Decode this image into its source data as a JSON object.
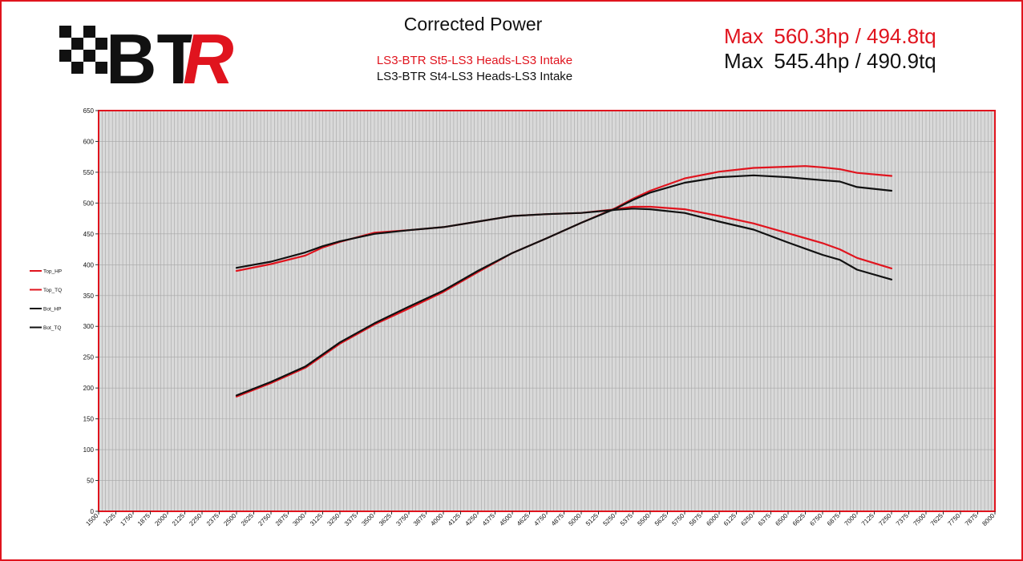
{
  "header": {
    "title": "Corrected Power",
    "subtitle_top": "LS3-BTR St5-LS3 Heads-LS3 Intake",
    "subtitle_bottom": "LS3-BTR St4-LS3 Heads-LS3 Intake",
    "max_top": {
      "label": "Max",
      "value": "560.3hp / 494.8tq"
    },
    "max_bottom": {
      "label": "Max",
      "value": "545.4hp / 490.9tq"
    }
  },
  "logo": {
    "text": "BTR",
    "colors": {
      "black": "#111111",
      "red": "#e0141e"
    }
  },
  "colors": {
    "top": "#e0141e",
    "bottom": "#111111",
    "plot_bg": "#d9d9d9",
    "grid": "#a6a6a6",
    "border": "#e0141e"
  },
  "chart_data": {
    "type": "line",
    "xlim": [
      1500,
      8000
    ],
    "ylim": [
      0,
      650
    ],
    "x_ticks": [
      "1500",
      "1625",
      "1750",
      "1875",
      "2000",
      "2125",
      "2250",
      "2375",
      "2500",
      "2625",
      "2750",
      "2875",
      "3000",
      "3125",
      "3250",
      "3375",
      "3500",
      "3625",
      "3750",
      "3875",
      "4000",
      "4125",
      "4250",
      "4375",
      "4500",
      "4625",
      "4750",
      "4875",
      "5000",
      "5125",
      "5250",
      "5375",
      "5500",
      "5625",
      "5750",
      "5875",
      "6000",
      "6125",
      "6250",
      "6375",
      "6500",
      "6625",
      "6750",
      "6875",
      "7000",
      "7125",
      "7250",
      "7375",
      "7500",
      "7625",
      "7750",
      "7875",
      "8000"
    ],
    "y_ticks": [
      "0",
      "50",
      "100",
      "150",
      "200",
      "250",
      "300",
      "350",
      "400",
      "450",
      "500",
      "550",
      "600",
      "650"
    ],
    "grid": true,
    "legend_position": "left",
    "series": [
      {
        "name": "Top_HP",
        "color": "#e0141e",
        "x": [
          2500,
          2750,
          3000,
          3250,
          3500,
          3750,
          4000,
          4250,
          4500,
          4750,
          5000,
          5250,
          5375,
          5500,
          5750,
          6000,
          6250,
          6500,
          6625,
          6750,
          6875,
          7000,
          7250
        ],
        "y": [
          186,
          208,
          233,
          272,
          303,
          329,
          356,
          388,
          419,
          443,
          468,
          492,
          507,
          520,
          540,
          551,
          557,
          559,
          560,
          558,
          555,
          549,
          544
        ]
      },
      {
        "name": "Top_TQ",
        "color": "#e0141e",
        "x": [
          2500,
          2750,
          3000,
          3125,
          3250,
          3500,
          3750,
          4000,
          4250,
          4500,
          4750,
          5000,
          5250,
          5375,
          5500,
          5750,
          6000,
          6250,
          6500,
          6750,
          6875,
          7000,
          7250
        ],
        "y": [
          390,
          401,
          415,
          428,
          437,
          452,
          456,
          461,
          470,
          479,
          482,
          484,
          490,
          494,
          494,
          490,
          479,
          467,
          451,
          435,
          425,
          411,
          394
        ]
      },
      {
        "name": "Bot_HP",
        "color": "#111111",
        "x": [
          2500,
          2750,
          3000,
          3250,
          3500,
          3750,
          4000,
          4250,
          4500,
          4750,
          5000,
          5250,
          5375,
          5500,
          5750,
          6000,
          6250,
          6500,
          6750,
          6875,
          7000,
          7250
        ],
        "y": [
          188,
          210,
          235,
          274,
          305,
          332,
          358,
          390,
          419,
          443,
          468,
          491,
          505,
          517,
          533,
          542,
          545,
          542,
          537,
          535,
          526,
          520
        ]
      },
      {
        "name": "Bot_TQ",
        "color": "#111111",
        "x": [
          2500,
          2750,
          3000,
          3125,
          3250,
          3500,
          3750,
          4000,
          4250,
          4500,
          4750,
          5000,
          5250,
          5375,
          5500,
          5750,
          6000,
          6250,
          6500,
          6750,
          6875,
          7000,
          7250
        ],
        "y": [
          395,
          405,
          420,
          430,
          438,
          450,
          456,
          461,
          470,
          479,
          482,
          484,
          489,
          491,
          490,
          484,
          470,
          457,
          436,
          416,
          408,
          392,
          376
        ]
      }
    ]
  }
}
